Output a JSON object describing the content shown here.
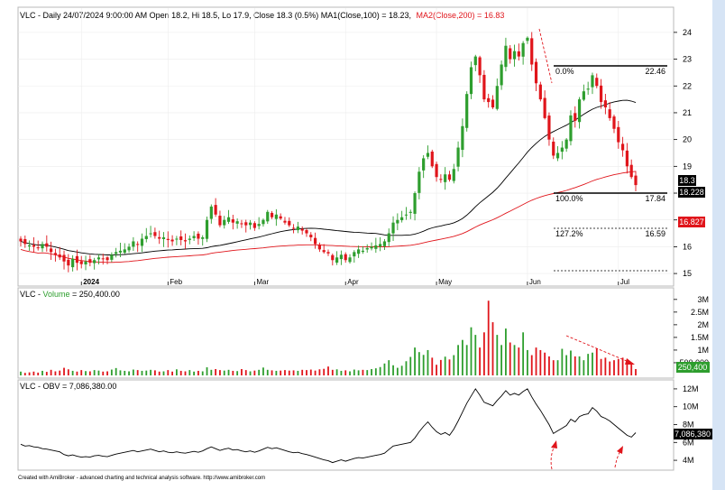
{
  "footer": "Created with AmiBroker - advanced charting and technical analysis software. http://www.amibroker.com",
  "colors": {
    "up": "#2e9e2e",
    "down": "#e0151b",
    "ma1": "#000000",
    "ma2": "#e0151b",
    "obv": "#000000",
    "annotation": "#e0151b",
    "bg": "#ffffff",
    "grid": "#e8e8e8",
    "side_blue": "#d6e4f5"
  },
  "price_panel": {
    "title_prefix": "VLC - Daily 24/07/2024 9:00:00 AM Open 18.2, Hi 18.5, Lo 17.9, Close 18.3 (0.5%) MA1(Close,100) = 18.23,",
    "title_ma2": "MA2(Close,200) = 16.83",
    "fib_labels": {
      "top_left": "0.0%",
      "top_right": "22.46",
      "mid_left": "100.0%",
      "mid_right": "17.84",
      "low_left": "127.2%",
      "low_right": "16.59"
    },
    "badges": {
      "close": "18.3",
      "ma1": "18.228",
      "ma2": "16.827"
    }
  },
  "volume_panel": {
    "title_prefix": "VLC - ",
    "title_volume": "Volume",
    "title_suffix": " = 250,400.00",
    "badge": "250,400"
  },
  "obv_panel": {
    "title": "VLC - OBV = 7,086,380.00",
    "badge": "7,086,380"
  },
  "chart_data": {
    "type": "candlestick",
    "symbol": "VLC",
    "x_tick_labels": [
      "2024",
      "Feb",
      "Mar",
      "Apr",
      "May",
      "Jun",
      "Jul"
    ],
    "price_axis": {
      "ticks": [
        15,
        16,
        17,
        18,
        19,
        20,
        21,
        22,
        23,
        24
      ],
      "ylim": [
        14.7,
        24.4
      ]
    },
    "volume_axis": {
      "tick_labels": [
        "500,000",
        "1M",
        "1.5M",
        "2M",
        "2.5M",
        "3M"
      ],
      "tick_values": [
        500000,
        1000000,
        1500000,
        2000000,
        2500000,
        3000000
      ],
      "ylim": [
        0,
        3350000
      ]
    },
    "obv_axis": {
      "tick_labels": [
        "4M",
        "6M",
        "8M",
        "10M",
        "12M"
      ],
      "tick_values": [
        4000000,
        6000000,
        8000000,
        10000000,
        12000000
      ],
      "ylim": [
        3200000,
        12700000
      ]
    },
    "fibonacci": [
      {
        "level": "0.0%",
        "price": 22.46
      },
      {
        "level": "100.0%",
        "price": 17.84
      },
      {
        "level": "127.2%",
        "price": 16.59
      },
      {
        "level": "",
        "price": 15.0
      }
    ],
    "last": {
      "open": 18.2,
      "high": 18.5,
      "low": 17.9,
      "close": 18.3,
      "ma100": 18.23,
      "ma200": 16.83,
      "volume": 250400,
      "obv": 7086380
    },
    "close_series": [
      16.2,
      16.1,
      16.05,
      16.0,
      15.95,
      16.1,
      16.0,
      15.8,
      15.7,
      15.6,
      15.45,
      15.3,
      15.55,
      15.4,
      15.35,
      15.45,
      15.4,
      15.5,
      15.6,
      15.55,
      15.5,
      15.7,
      15.8,
      15.85,
      15.9,
      16.0,
      16.2,
      16.1,
      16.3,
      16.4,
      16.5,
      16.4,
      16.3,
      16.35,
      16.25,
      16.2,
      16.3,
      16.25,
      16.2,
      16.3,
      16.4,
      16.3,
      16.35,
      17.0,
      17.5,
      17.2,
      16.8,
      17.0,
      17.1,
      16.9,
      16.95,
      16.85,
      16.8,
      16.9,
      16.7,
      16.85,
      17.0,
      17.3,
      17.1,
      17.2,
      17.05,
      16.9,
      16.8,
      16.7,
      16.75,
      16.6,
      16.5,
      16.35,
      16.1,
      15.9,
      15.8,
      15.75,
      15.5,
      15.6,
      15.7,
      15.5,
      15.6,
      15.8,
      15.9,
      15.85,
      15.95,
      16.0,
      16.05,
      16.1,
      16.2,
      16.5,
      16.9,
      17.0,
      17.1,
      17.2,
      17.3,
      18.0,
      18.8,
      19.3,
      19.5,
      19.0,
      18.6,
      18.5,
      18.7,
      18.5,
      18.9,
      19.7,
      20.5,
      21.7,
      22.7,
      23.1,
      22.4,
      21.5,
      21.4,
      21.2,
      22.0,
      22.8,
      23.5,
      23.0,
      23.3,
      23.1,
      23.6,
      23.8,
      22.8,
      22.1,
      21.5,
      20.8,
      20.0,
      19.4,
      19.5,
      19.7,
      20.0,
      20.9,
      20.7,
      21.5,
      21.8,
      21.9,
      22.4,
      22.0,
      21.4,
      21.2,
      20.8,
      20.4,
      19.9,
      19.6,
      19.0,
      18.6,
      18.3
    ],
    "volume_series": [
      150000,
      100000,
      120000,
      150000,
      110000,
      180000,
      140000,
      220000,
      160000,
      190000,
      300000,
      240000,
      180000,
      150000,
      210000,
      170000,
      160000,
      210000,
      190000,
      150000,
      160000,
      230000,
      290000,
      200000,
      180000,
      160000,
      230000,
      210000,
      180000,
      190000,
      220000,
      200000,
      150000,
      160000,
      210000,
      150000,
      240000,
      180000,
      160000,
      210000,
      150000,
      180000,
      160000,
      320000,
      220000,
      250000,
      210000,
      190000,
      220000,
      180000,
      170000,
      250000,
      210000,
      160000,
      190000,
      220000,
      310000,
      220000,
      200000,
      180000,
      190000,
      210000,
      190000,
      200000,
      180000,
      220000,
      210000,
      230000,
      190000,
      240000,
      260000,
      350000,
      220000,
      240000,
      180000,
      200000,
      160000,
      230000,
      200000,
      220000,
      210000,
      250000,
      280000,
      330000,
      470000,
      600000,
      400000,
      300000,
      380000,
      560000,
      730000,
      1100000,
      920000,
      810000,
      1000000,
      700000,
      420000,
      610000,
      740000,
      630000,
      800000,
      1200000,
      1400000,
      1200000,
      1900000,
      1600000,
      1100000,
      1700000,
      2950000,
      2100000,
      1600000,
      1200000,
      1850000,
      1300000,
      1200000,
      1100000,
      1700000,
      1000000,
      800000,
      1100000,
      1000000,
      900000,
      750000,
      600000,
      600000,
      1050000,
      800000,
      980000,
      750000,
      750000,
      600000,
      850000,
      900000,
      1050000,
      650000,
      700000,
      550000,
      600000,
      650000,
      700000,
      500000,
      480000,
      250400
    ],
    "obv_series": [
      5800000,
      5600000,
      5650000,
      5500000,
      5450000,
      5300000,
      5250000,
      5150000,
      5050000,
      4950000,
      4650000,
      4500000,
      4600000,
      4450000,
      4350000,
      4400000,
      4350000,
      4500000,
      4550000,
      4450000,
      4400000,
      4550000,
      4700000,
      4800000,
      4900000,
      5000000,
      5100000,
      4950000,
      5050000,
      5150000,
      5250000,
      5100000,
      4950000,
      5050000,
      4900000,
      4850000,
      4950000,
      4850000,
      4800000,
      4900000,
      5000000,
      4900000,
      5050000,
      5300000,
      5500000,
      5300000,
      5100000,
      5250000,
      5350000,
      5150000,
      5200000,
      5050000,
      4950000,
      5050000,
      4900000,
      5050000,
      5250000,
      5450000,
      5300000,
      5400000,
      5250000,
      5100000,
      4950000,
      4850000,
      4900000,
      4750000,
      4650000,
      4500000,
      4350000,
      4200000,
      4050000,
      3950000,
      3750000,
      3900000,
      4050000,
      3900000,
      4050000,
      4200000,
      4300000,
      4250000,
      4350000,
      4450000,
      4550000,
      4650000,
      4800000,
      5200000,
      5600000,
      5700000,
      5800000,
      5900000,
      6000000,
      6500000,
      7200000,
      7800000,
      8300000,
      7700000,
      7200000,
      6900000,
      7100000,
      6800000,
      7500000,
      8400000,
      9400000,
      10400000,
      11200000,
      12000000,
      11300000,
      10500000,
      10300000,
      10100000,
      10700000,
      11200000,
      11800000,
      11300000,
      11500000,
      11300000,
      11700000,
      12000000,
      11100000,
      10300000,
      9600000,
      8800000,
      8000000,
      7000000,
      7300000,
      7600000,
      7900000,
      8600000,
      8300000,
      8900000,
      9100000,
      9200000,
      9900000,
      9500000,
      8900000,
      8700000,
      8400000,
      8000000,
      7600000,
      7200000,
      6800000,
      6600000,
      7086380
    ]
  }
}
